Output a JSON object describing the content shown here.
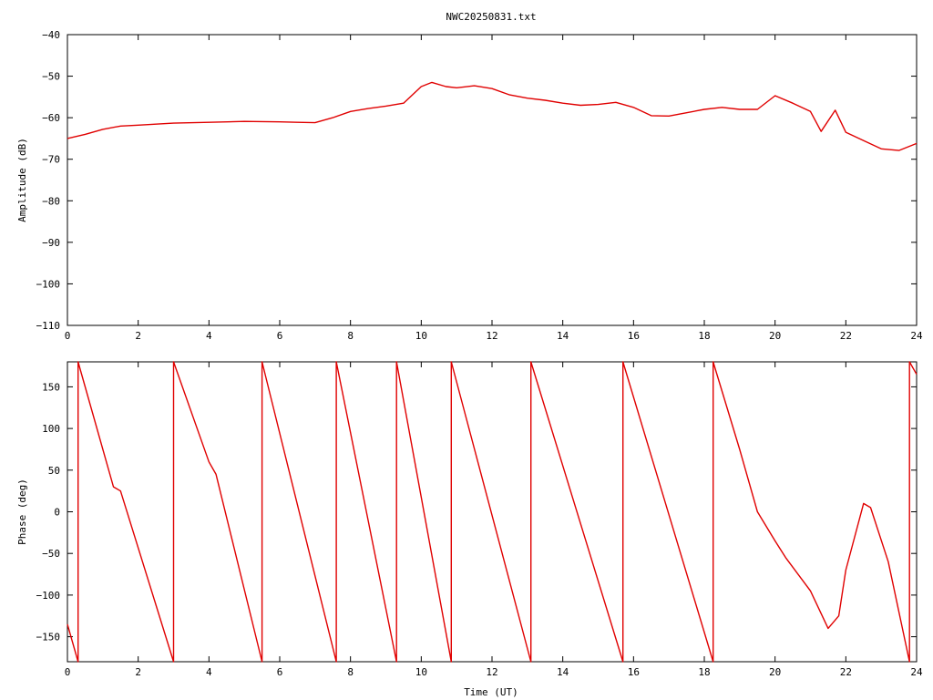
{
  "colors": {
    "trace": "#e00000",
    "axis": "#000000",
    "background": "#ffffff"
  },
  "chart_data": [
    {
      "type": "line",
      "title": "NWC20250831.txt",
      "xlabel": "",
      "ylabel": "Amplitude (dB)",
      "xlim": [
        0,
        24
      ],
      "ylim": [
        -110,
        -40
      ],
      "xticks": [
        0,
        2,
        4,
        6,
        8,
        10,
        12,
        14,
        16,
        18,
        20,
        22,
        24
      ],
      "yticks": [
        -40,
        -50,
        -60,
        -70,
        -80,
        -90,
        -100,
        -110
      ],
      "grid": false,
      "series": [
        {
          "x": [
            0,
            0.5,
            1,
            1.5,
            2,
            3,
            4,
            5,
            6,
            6.5,
            7,
            7.5,
            8,
            8.5,
            9,
            9.5,
            10,
            10.3,
            10.7,
            11,
            11.5,
            12,
            12.5,
            13,
            13.5,
            14,
            14.5,
            15,
            15.5,
            16,
            16.5,
            17,
            17.5,
            18,
            18.5,
            19,
            19.5,
            20,
            20.5,
            21,
            21.3,
            21.7,
            22,
            22.5,
            23,
            23.5,
            24
          ],
          "y": [
            -65,
            -64,
            -62.8,
            -62,
            -61.8,
            -61.3,
            -61.1,
            -60.9,
            -61,
            -61.1,
            -61.2,
            -60,
            -58.5,
            -57.8,
            -57.2,
            -56.5,
            -52.5,
            -51.5,
            -52.5,
            -52.8,
            -52.3,
            -53,
            -54.5,
            -55.3,
            -55.8,
            -56.5,
            -57,
            -56.8,
            -56.3,
            -57.5,
            -59.5,
            -59.6,
            -58.8,
            -58,
            -57.5,
            -58,
            -58,
            -54.7,
            -56.5,
            -58.5,
            -63.3,
            -58.2,
            -63.5,
            -65.5,
            -67.5,
            -67.9,
            -66.2
          ]
        }
      ]
    },
    {
      "type": "line",
      "title": "",
      "xlabel": "Time (UT)",
      "ylabel": "Phase (deg)",
      "xlim": [
        0,
        24
      ],
      "ylim": [
        -180,
        180
      ],
      "xticks": [
        0,
        2,
        4,
        6,
        8,
        10,
        12,
        14,
        16,
        18,
        20,
        22,
        24
      ],
      "yticks": [
        150,
        100,
        50,
        0,
        -50,
        -100,
        -150
      ],
      "grid": false,
      "series": [
        {
          "x": [
            0,
            0.3,
            0.3,
            1.3,
            1.5,
            3,
            3,
            4,
            4.2,
            5.5,
            5.5,
            7.6,
            7.6,
            9.3,
            9.3,
            10.85,
            10.85,
            13.1,
            13.1,
            15.7,
            15.7,
            18.25,
            18.25,
            19,
            19.5,
            20,
            20.3,
            21,
            21.5,
            21.8,
            22,
            22.5,
            22.7,
            23.2,
            23.8,
            23.8,
            24
          ],
          "y": [
            -135,
            -180,
            180,
            30,
            25,
            -180,
            180,
            60,
            45,
            -180,
            180,
            -180,
            180,
            -180,
            180,
            -180,
            180,
            -180,
            180,
            -180,
            180,
            -180,
            180,
            75,
            0,
            -35,
            -55,
            -95,
            -140,
            -125,
            -70,
            10,
            5,
            -60,
            -180,
            180,
            165
          ]
        }
      ]
    }
  ]
}
